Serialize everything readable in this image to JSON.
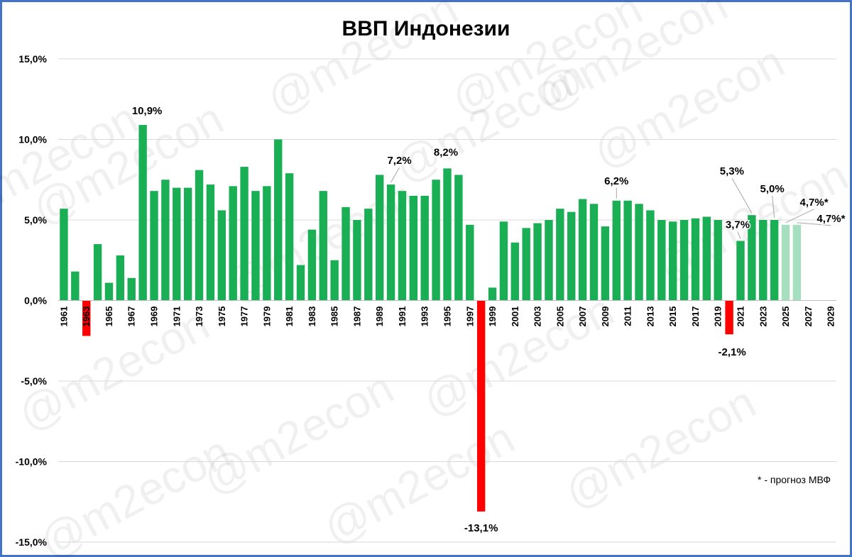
{
  "chart_data": {
    "type": "bar",
    "title": "ВВП Индонезии",
    "xlabel": "",
    "ylabel": "",
    "ylim": [
      -15,
      15
    ],
    "yticks": [
      15,
      10,
      5,
      0,
      -5,
      -10,
      -15
    ],
    "ytick_labels": [
      "15,0%",
      "10,0%",
      "5,0%",
      "0,0%",
      "-5,0%",
      "-10,0%",
      "-15,0%"
    ],
    "categories": [
      "1961",
      "1962",
      "1963",
      "1964",
      "1965",
      "1966",
      "1967",
      "1968",
      "1969",
      "1970",
      "1971",
      "1972",
      "1973",
      "1974",
      "1975",
      "1976",
      "1977",
      "1978",
      "1979",
      "1980",
      "1981",
      "1982",
      "1983",
      "1984",
      "1985",
      "1986",
      "1987",
      "1988",
      "1989",
      "1990",
      "1991",
      "1992",
      "1993",
      "1994",
      "1995",
      "1996",
      "1997",
      "1998",
      "1999",
      "2000",
      "2001",
      "2002",
      "2003",
      "2004",
      "2005",
      "2006",
      "2007",
      "2008",
      "2009",
      "2010",
      "2011",
      "2012",
      "2013",
      "2014",
      "2015",
      "2016",
      "2017",
      "2018",
      "2019",
      "2020",
      "2021",
      "2022",
      "2023",
      "2024",
      "2025",
      "2026",
      "2027",
      "2028",
      "2029"
    ],
    "x_tick_labels": [
      "1961",
      "1963",
      "1965",
      "1967",
      "1969",
      "1971",
      "1973",
      "1975",
      "1977",
      "1979",
      "1981",
      "1983",
      "1985",
      "1987",
      "1989",
      "1991",
      "1993",
      "1995",
      "1997",
      "1999",
      "2001",
      "2003",
      "2005",
      "2007",
      "2009",
      "2011",
      "2013",
      "2015",
      "2017",
      "2019",
      "2021",
      "2023",
      "2025",
      "2027",
      "2029"
    ],
    "values": [
      5.7,
      1.8,
      -2.2,
      3.5,
      1.1,
      2.8,
      1.4,
      10.9,
      6.8,
      7.5,
      7.0,
      7.0,
      8.1,
      7.2,
      5.6,
      7.1,
      8.3,
      6.8,
      7.1,
      10.0,
      7.9,
      2.2,
      4.4,
      6.8,
      2.5,
      5.8,
      5.0,
      5.7,
      7.8,
      7.2,
      6.8,
      6.5,
      6.5,
      7.5,
      8.2,
      7.8,
      4.7,
      -13.1,
      0.8,
      4.9,
      3.6,
      4.5,
      4.8,
      5.0,
      5.7,
      5.5,
      6.3,
      6.0,
      4.6,
      6.2,
      6.2,
      6.0,
      5.6,
      5.0,
      4.9,
      5.0,
      5.1,
      5.2,
      5.0,
      -2.1,
      3.7,
      5.3,
      5.0,
      5.0,
      4.7,
      4.7,
      null,
      null,
      null
    ],
    "forecast": [
      "2025",
      "2026"
    ],
    "colors": {
      "positive": "#1aaf54",
      "negative": "#ff0000",
      "forecast": "#a6dfbf",
      "grid": "#d9d9d9",
      "frame": "#4472c4"
    },
    "annotations": [
      {
        "year": "1968",
        "text": "10,9%"
      },
      {
        "year": "1990",
        "text": "7,2%"
      },
      {
        "year": "1995",
        "text": "8,2%"
      },
      {
        "year": "1998",
        "text": "-13,1%"
      },
      {
        "year": "2010",
        "text": "6,2%"
      },
      {
        "year": "2020",
        "text": "-2,1%"
      },
      {
        "year": "2021",
        "text": "3,7%"
      },
      {
        "year": "2022",
        "text": "5,3%"
      },
      {
        "year": "2024",
        "text": "5,0%"
      },
      {
        "year": "2025",
        "text": "4,7%*"
      },
      {
        "year": "2026",
        "text": "4,7%*"
      }
    ],
    "footnote": "* - прогноз МВФ",
    "watermark": "@m2econ",
    "grid": true,
    "legend": "none"
  }
}
